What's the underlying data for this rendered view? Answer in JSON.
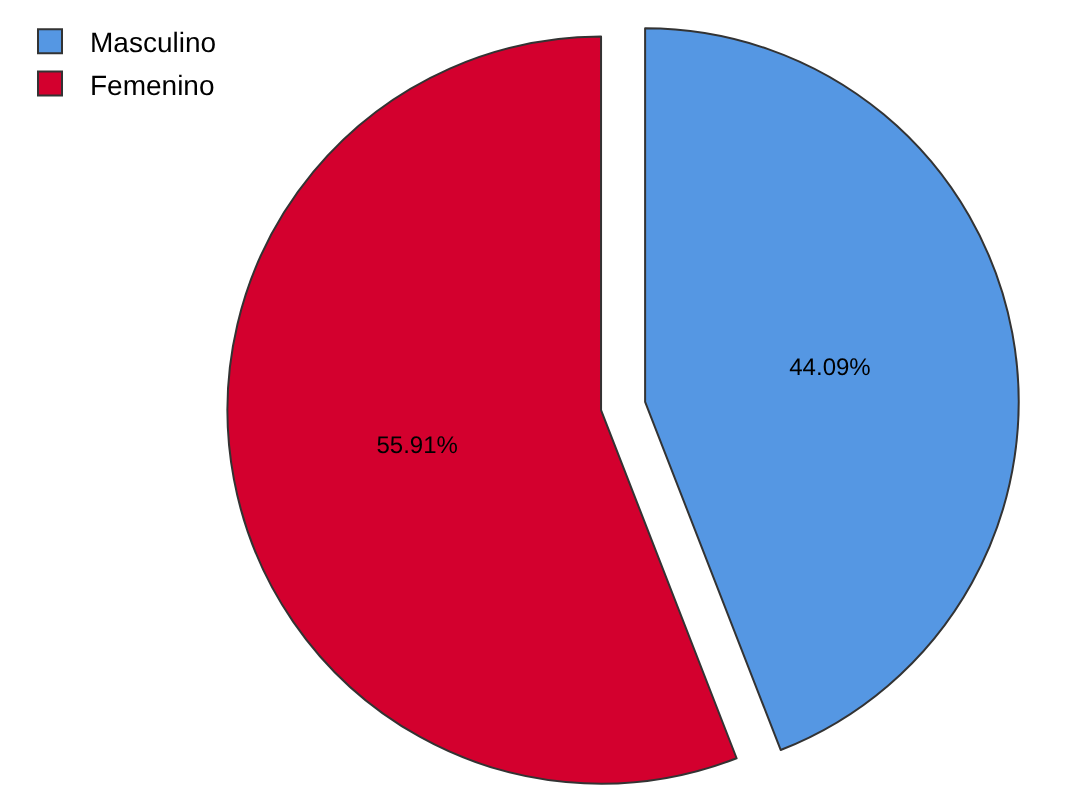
{
  "chart_data": {
    "type": "pie",
    "categories": [
      "Masculino",
      "Femenino"
    ],
    "values": [
      44.09,
      55.91
    ],
    "value_labels": [
      "44.09%",
      "55.91%"
    ],
    "colors": [
      "#5597e3",
      "#d3002e"
    ],
    "legend": "top left"
  }
}
